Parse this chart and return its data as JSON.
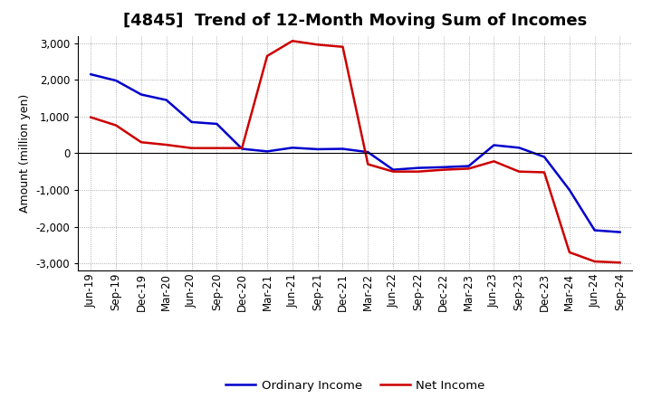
{
  "title": "[4845]  Trend of 12-Month Moving Sum of Incomes",
  "ylabel": "Amount (million yen)",
  "ylim": [
    -3200,
    3200
  ],
  "yticks": [
    -3000,
    -2000,
    -1000,
    0,
    1000,
    2000,
    3000
  ],
  "x_labels": [
    "Jun-19",
    "Sep-19",
    "Dec-19",
    "Mar-20",
    "Jun-20",
    "Sep-20",
    "Dec-20",
    "Mar-21",
    "Jun-21",
    "Sep-21",
    "Dec-21",
    "Mar-22",
    "Jun-22",
    "Sep-22",
    "Dec-22",
    "Mar-23",
    "Jun-23",
    "Sep-23",
    "Dec-23",
    "Mar-24",
    "Jun-24",
    "Sep-24"
  ],
  "ordinary_income": [
    2150,
    1980,
    1600,
    1450,
    850,
    800,
    120,
    50,
    150,
    110,
    120,
    30,
    -450,
    -400,
    -380,
    -350,
    220,
    150,
    -100,
    -1000,
    -2100,
    -2150
  ],
  "net_income": [
    980,
    760,
    300,
    230,
    140,
    140,
    140,
    2650,
    3060,
    2960,
    2900,
    -300,
    -500,
    -500,
    -450,
    -420,
    -220,
    -500,
    -520,
    -2700,
    -2950,
    -2980
  ],
  "ordinary_income_color": "#0000CC",
  "net_income_color": "#CC0000",
  "bg_color": "#FFFFFF",
  "plot_bg_color": "#FFFFFF",
  "grid_color": "#999999",
  "legend_labels": [
    "Ordinary Income",
    "Net Income"
  ],
  "title_fontsize": 13,
  "tick_fontsize": 8.5,
  "ylabel_fontsize": 9
}
